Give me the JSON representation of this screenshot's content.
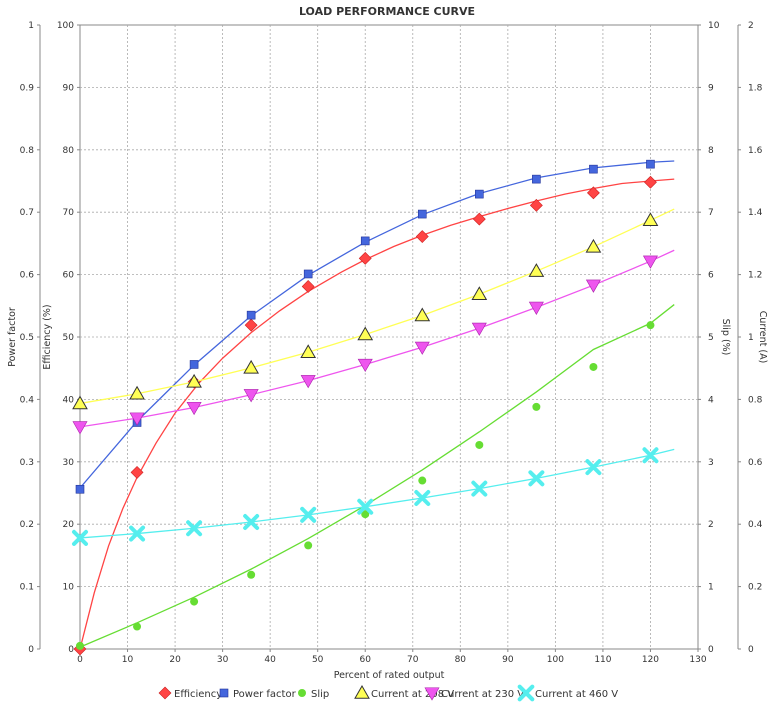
{
  "chart_data": {
    "type": "line",
    "title": "LOAD PERFORMANCE CURVE",
    "xlabel": "Percent of rated output",
    "xlim": [
      0,
      130
    ],
    "x_ticks": [
      "0",
      "10",
      "20",
      "30",
      "40",
      "50",
      "60",
      "70",
      "80",
      "90",
      "100",
      "110",
      "120",
      "130"
    ],
    "axes": {
      "power_factor": {
        "label": "Power factor",
        "range": [
          0,
          1
        ],
        "ticks": [
          "0",
          "0.1",
          "0.2",
          "0.3",
          "0.4",
          "0.5",
          "0.6",
          "0.7",
          "0.8",
          "0.9",
          "1"
        ]
      },
      "efficiency": {
        "label": "Efficiency (%)",
        "range": [
          0,
          100
        ],
        "ticks": [
          "0",
          "10",
          "20",
          "30",
          "40",
          "50",
          "60",
          "70",
          "80",
          "90",
          "100"
        ]
      },
      "slip": {
        "label": "Slip (%)",
        "range": [
          0,
          10
        ],
        "ticks": [
          "0",
          "1",
          "2",
          "3",
          "4",
          "5",
          "6",
          "7",
          "8",
          "9",
          "10"
        ]
      },
      "current": {
        "label": "Current (A)",
        "range": [
          0,
          2
        ],
        "ticks": [
          "0",
          "0.2",
          "0.4",
          "0.6",
          "0.8",
          "1",
          "1.2",
          "1.4",
          "1.6",
          "1.8",
          "2"
        ]
      }
    },
    "grid": true,
    "legend_position": "bottom",
    "series": [
      {
        "name": "Efficiency",
        "axis": "efficiency",
        "color": "#ff4444",
        "marker": "diamond",
        "x": [
          0,
          12,
          24,
          36,
          48,
          60,
          72,
          84,
          96,
          108,
          120
        ],
        "values": [
          0,
          28.3,
          42.8,
          51.9,
          58.1,
          62.6,
          66.1,
          68.9,
          71.1,
          73.1,
          74.8
        ],
        "curve_x": [
          0,
          3,
          6,
          9,
          12,
          16,
          20,
          25,
          30,
          36,
          42,
          48,
          55,
          60,
          66,
          72,
          78,
          84,
          90,
          96,
          102,
          108,
          114,
          120,
          125
        ],
        "curve": [
          0,
          9,
          16.5,
          22.5,
          27.5,
          33,
          37.8,
          42.6,
          46.6,
          50.7,
          54.2,
          57.3,
          60.4,
          62.4,
          64.5,
          66.3,
          67.9,
          69.3,
          70.6,
          71.8,
          72.9,
          73.8,
          74.6,
          75.0,
          75.3
        ]
      },
      {
        "name": "Power factor",
        "axis": "power_factor",
        "color": "#4466dd",
        "marker": "square",
        "x": [
          0,
          12,
          24,
          36,
          48,
          60,
          72,
          84,
          96,
          108,
          120
        ],
        "values": [
          0.256,
          0.363,
          0.456,
          0.535,
          0.601,
          0.654,
          0.697,
          0.729,
          0.753,
          0.769,
          0.777
        ],
        "curve_x": [
          0,
          12,
          24,
          36,
          48,
          60,
          72,
          84,
          96,
          108,
          120,
          125
        ],
        "curve": [
          0.258,
          0.365,
          0.455,
          0.534,
          0.599,
          0.652,
          0.696,
          0.73,
          0.755,
          0.771,
          0.78,
          0.782
        ]
      },
      {
        "name": "Slip",
        "axis": "slip",
        "color": "#66dd33",
        "marker": "circle",
        "x": [
          0,
          12,
          24,
          36,
          48,
          60,
          72,
          84,
          96,
          108,
          120
        ],
        "values": [
          0.05,
          0.36,
          0.76,
          1.19,
          1.66,
          2.16,
          2.7,
          3.27,
          3.88,
          4.52,
          5.19
        ],
        "curve_x": [
          0,
          12,
          24,
          36,
          48,
          60,
          72,
          84,
          96,
          108,
          120,
          125
        ],
        "curve": [
          0.03,
          0.42,
          0.83,
          1.28,
          1.77,
          2.3,
          2.87,
          3.48,
          4.12,
          4.8,
          5.22,
          5.52
        ]
      },
      {
        "name": "Current at 208 V",
        "axis": "current",
        "color": "#ffff55",
        "marker": "triangle-up",
        "x": [
          0,
          12,
          24,
          36,
          48,
          60,
          72,
          84,
          96,
          108,
          120
        ],
        "values": [
          0.787,
          0.818,
          0.856,
          0.901,
          0.951,
          1.008,
          1.069,
          1.137,
          1.211,
          1.289,
          1.374
        ],
        "curve_x": [
          0,
          12,
          24,
          36,
          48,
          60,
          72,
          84,
          96,
          108,
          120,
          125
        ],
        "curve": [
          0.787,
          0.818,
          0.856,
          0.901,
          0.951,
          1.008,
          1.069,
          1.137,
          1.211,
          1.289,
          1.374,
          1.41
        ]
      },
      {
        "name": "Current at 230 V",
        "axis": "current",
        "color": "#ee55ee",
        "marker": "triangle-down",
        "x": [
          0,
          12,
          24,
          36,
          48,
          60,
          72,
          84,
          96,
          108,
          120
        ],
        "values": [
          0.712,
          0.74,
          0.774,
          0.815,
          0.86,
          0.912,
          0.967,
          1.028,
          1.095,
          1.166,
          1.243
        ],
        "curve_x": [
          0,
          12,
          24,
          36,
          48,
          60,
          72,
          84,
          96,
          108,
          120,
          125
        ],
        "curve": [
          0.712,
          0.74,
          0.774,
          0.815,
          0.86,
          0.912,
          0.967,
          1.028,
          1.095,
          1.166,
          1.243,
          1.278
        ]
      },
      {
        "name": "Current at 460 V",
        "axis": "current",
        "color": "#55eeee",
        "marker": "x",
        "x": [
          0,
          12,
          24,
          36,
          48,
          60,
          72,
          84,
          96,
          108,
          120
        ],
        "values": [
          0.356,
          0.37,
          0.387,
          0.407,
          0.43,
          0.456,
          0.484,
          0.514,
          0.547,
          0.583,
          0.621
        ],
        "curve_x": [
          0,
          12,
          24,
          36,
          48,
          60,
          72,
          84,
          96,
          108,
          120,
          125
        ],
        "curve": [
          0.356,
          0.37,
          0.387,
          0.407,
          0.43,
          0.456,
          0.484,
          0.514,
          0.547,
          0.583,
          0.621,
          0.64
        ]
      }
    ]
  }
}
